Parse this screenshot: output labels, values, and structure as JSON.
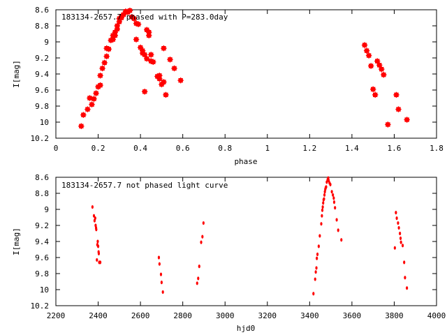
{
  "chart_data": [
    {
      "type": "scatter",
      "title": "183134-2657.7 phased with P=283.0day",
      "xlabel": "phase",
      "ylabel": "I[mag]",
      "xlim": [
        0,
        1.8
      ],
      "ylim": [
        10.2,
        8.6
      ],
      "y_inverted": true,
      "xticks": [
        "0",
        "0.2",
        "0.4",
        "0.6",
        "0.8",
        "1",
        "1.2",
        "1.4",
        "1.6",
        "1.8"
      ],
      "yticks": [
        "8.6",
        "8.8",
        "9",
        "9.2",
        "9.4",
        "9.6",
        "9.8",
        "10",
        "10.2"
      ],
      "marker_color": "#ff0000",
      "series": [
        {
          "x": [
            0.12,
            0.13,
            0.15,
            0.16,
            0.17,
            0.18,
            0.19,
            0.2,
            0.21,
            0.21,
            0.22,
            0.23,
            0.24,
            0.24,
            0.25,
            0.26,
            0.27,
            0.27,
            0.28,
            0.28,
            0.29,
            0.29,
            0.3,
            0.3,
            0.31,
            0.31,
            0.32,
            0.33,
            0.34,
            0.35,
            0.36,
            0.37,
            0.38,
            0.38,
            0.39,
            0.4,
            0.41,
            0.41,
            0.42,
            0.42,
            0.43,
            0.43,
            0.44,
            0.44,
            0.45,
            0.45,
            0.46,
            0.48,
            0.49,
            0.49,
            0.5,
            0.51,
            0.51,
            0.52,
            0.54,
            0.56,
            0.59,
            1.46,
            1.47,
            1.48,
            1.49,
            1.5,
            1.51,
            1.52,
            1.53,
            1.54,
            1.55,
            1.57,
            1.61,
            1.62,
            1.66
          ],
          "y": [
            10.05,
            9.91,
            9.84,
            9.7,
            9.78,
            9.71,
            9.64,
            9.56,
            9.54,
            9.42,
            9.33,
            9.26,
            9.18,
            9.08,
            9.09,
            8.98,
            8.97,
            8.92,
            8.88,
            8.92,
            8.84,
            8.8,
            8.71,
            8.75,
            8.7,
            8.68,
            8.66,
            8.62,
            8.63,
            8.61,
            8.69,
            8.71,
            8.77,
            8.97,
            8.78,
            9.07,
            9.11,
            9.14,
            9.16,
            9.62,
            9.21,
            8.85,
            8.88,
            8.92,
            9.16,
            9.24,
            9.25,
            9.43,
            9.42,
            9.46,
            9.53,
            9.5,
            9.08,
            9.66,
            9.22,
            9.33,
            9.48,
            9.04,
            9.11,
            9.17,
            9.3,
            9.59,
            9.66,
            9.24,
            9.29,
            9.34,
            9.41,
            10.03,
            9.66,
            9.84,
            9.97
          ]
        }
      ]
    },
    {
      "type": "scatter",
      "title": "183134-2657.7 not phased light curve",
      "xlabel": "hjd0",
      "ylabel": "I[mag]",
      "xlim": [
        2200,
        4000
      ],
      "ylim": [
        10.2,
        8.6
      ],
      "y_inverted": true,
      "xticks": [
        "2200",
        "2400",
        "2600",
        "2800",
        "3000",
        "3200",
        "3400",
        "3600",
        "3800",
        "4000"
      ],
      "yticks": [
        "8.6",
        "8.8",
        "9",
        "9.2",
        "9.4",
        "9.6",
        "9.8",
        "10",
        "10.2"
      ],
      "marker_color": "#ff0000",
      "series": [
        {
          "x": [
            2373,
            2380,
            2383,
            2386,
            2388,
            2390,
            2391,
            2394,
            2396,
            2398,
            2400,
            2402,
            2403,
            2405,
            2410,
            2687,
            2690,
            2697,
            2700,
            2706,
            2868,
            2873,
            2878,
            2887,
            2893,
            2898,
            3418,
            3426,
            3429,
            3432,
            3434,
            3437,
            3443,
            3448,
            3455,
            3458,
            3460,
            3462,
            3464,
            3466,
            3468,
            3470,
            3472,
            3474,
            3476,
            3478,
            3481,
            3485,
            3488,
            3490,
            3494,
            3498,
            3505,
            3510,
            3514,
            3516,
            3520,
            3528,
            3535,
            3550,
            3803,
            3808,
            3812,
            3818,
            3822,
            3827,
            3830,
            3832,
            3840,
            3847,
            3851,
            3860
          ],
          "y": [
            8.97,
            9.08,
            9.14,
            9.11,
            9.2,
            9.23,
            9.25,
            9.63,
            9.44,
            9.4,
            9.46,
            9.53,
            9.55,
            9.66,
            9.66,
            9.6,
            9.68,
            9.81,
            9.91,
            10.03,
            9.92,
            9.86,
            9.71,
            9.41,
            9.34,
            9.17,
            10.05,
            9.87,
            9.78,
            9.73,
            9.61,
            9.56,
            9.46,
            9.33,
            9.18,
            9.08,
            9.01,
            8.97,
            8.92,
            8.88,
            8.87,
            8.82,
            8.78,
            8.75,
            8.73,
            8.72,
            8.66,
            8.63,
            8.61,
            8.64,
            8.67,
            8.69,
            8.78,
            8.82,
            8.86,
            8.91,
            8.98,
            9.13,
            9.26,
            9.38,
            9.48,
            9.04,
            9.11,
            9.17,
            9.23,
            9.3,
            9.36,
            9.41,
            9.45,
            9.66,
            9.85,
            9.98
          ]
        }
      ]
    }
  ]
}
